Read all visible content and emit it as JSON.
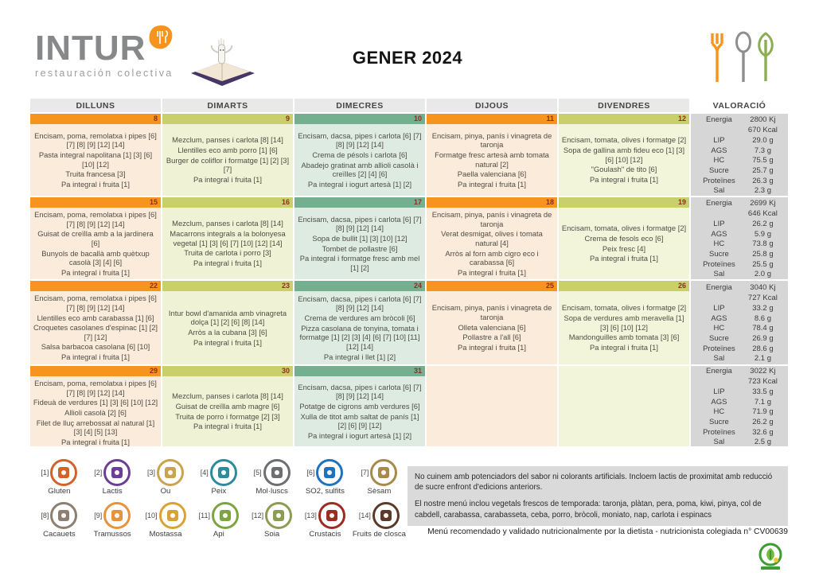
{
  "header": {
    "logo_text": "INTUR",
    "logo_subtext": "restauración colectiva",
    "title": "GENER 2024"
  },
  "columns": [
    "DILLUNS",
    "DIMARTS",
    "DIMECRES",
    "DIJOUS",
    "DIVENDRES",
    "VALORACIÓ"
  ],
  "column_colors": [
    {
      "strip": "#F7941D",
      "body": "#FBEBDA"
    },
    {
      "strip": "#C9CF6B",
      "body": "#EFF2D4"
    },
    {
      "strip": "#74AF90",
      "body": "#DEEBE3"
    },
    {
      "strip": "#F7941D",
      "body": "#FBEBDA"
    },
    {
      "strip": "#C9CF6B",
      "body": "#F3F5DB"
    }
  ],
  "nutrition_panel_color": "#D6D6D6",
  "weeks": [
    {
      "days": [
        {
          "num": "8",
          "items": [
            "Encisam, poma, remolatxa i pipes [6] [7] [8] [9] [12] [14]",
            "Pasta integral napolitana [1] [3] [6] [10] [12]",
            "Truita francesa [3]",
            "Pa integral i fruita [1]"
          ]
        },
        {
          "num": "9",
          "items": [
            "Mezclum, panses i carlota [8] [14]",
            "Llentilles eco amb porro [1] [6]",
            "Burger de coliflor i formatge [1] [2] [3] [7]",
            "Pa integral i fruita [1]"
          ]
        },
        {
          "num": "10",
          "items": [
            "Encisam, dacsa, pipes i carlota [6] [7] [8] [9] [12] [14]",
            "Crema de pésols i carlota [6]",
            "Abadejo gratinat amb allioli casolà i creïlles [2] [4] [6]",
            "Pa integral i iogurt artesà [1] [2]"
          ]
        },
        {
          "num": "11",
          "items": [
            "Encisam, pinya, panís i vinagreta de taronja",
            "Formatge fresc artesà amb tomata natural [2]",
            "Paella valenciana [6]",
            "Pa integral i fruita [1]"
          ]
        },
        {
          "num": "12",
          "items": [
            "Encisam, tomata, olives i formatge [2]",
            "Sopa de gallina amb fideu eco [1] [3] [6] [10] [12]",
            "\"Goulash\" de tito [6]",
            "Pa integral i fruita [1]"
          ]
        }
      ],
      "nutrition": [
        [
          "Energia",
          "2800 Kj"
        ],
        [
          "",
          "670 Kcal"
        ],
        [
          "LIP",
          "29.0 g"
        ],
        [
          "AGS",
          "7.3 g"
        ],
        [
          "HC",
          "75.5 g"
        ],
        [
          "Sucre",
          "25.7 g"
        ],
        [
          "Proteïnes",
          "26.3 g"
        ],
        [
          "Sal",
          "2.3 g"
        ]
      ]
    },
    {
      "days": [
        {
          "num": "15",
          "items": [
            "Encisam, poma, remolatxa i pipes [6] [7] [8] [9] [12] [14]",
            "Guisat de creïlla amb a la jardinera [6]",
            "Bunyols de bacallà amb quètxup casolà [3] [4] [6]",
            "Pa integral i fruita [1]"
          ]
        },
        {
          "num": "16",
          "items": [
            "Mezclum, panses i carlota [8] [14]",
            "Macarrons integrals a la bolonyesa vegetal [1] [3] [6] [7] [10] [12] [14]",
            "Truita de carlota i porro [3]",
            "Pa integral i fruita [1]"
          ]
        },
        {
          "num": "17",
          "items": [
            "Encisam, dacsa, pipes i carlota [6] [7] [8] [9] [12] [14]",
            "Sopa de bullit [1] [3] [10] [12]",
            "Tombet de pollastre [6]",
            "Pa integral i formatge fresc amb mel [1] [2]"
          ]
        },
        {
          "num": "18",
          "items": [
            "Encisam, pinya, panís i vinagreta de taronja",
            "Verat desmigat, olives i tomata natural [4]",
            "Arròs al forn amb cigro eco i carabassa [6]",
            "Pa integral i fruita [1]"
          ]
        },
        {
          "num": "19",
          "items": [
            "Encisam, tomata, olives i formatge [2]",
            "Crema de fesols eco [6]",
            "Peix fresc [4]",
            "Pa integral i fruita [1]"
          ]
        }
      ],
      "nutrition": [
        [
          "Energia",
          "2699 Kj"
        ],
        [
          "",
          "646 Kcal"
        ],
        [
          "LIP",
          "26.2 g"
        ],
        [
          "AGS",
          "5.9 g"
        ],
        [
          "HC",
          "73.8 g"
        ],
        [
          "Sucre",
          "25.8 g"
        ],
        [
          "Proteïnes",
          "25.5 g"
        ],
        [
          "Sal",
          "2.0 g"
        ]
      ]
    },
    {
      "days": [
        {
          "num": "22",
          "items": [
            "Encisam, poma, remolatxa i pipes [6] [7] [8] [9] [12] [14]",
            "Llentilles eco amb carabassa [1] [6]",
            "Croquetes casolanes d'espinac [1] [2] [7] [12]",
            "Salsa barbacoa casolana [6] [10]",
            "Pa integral i fruita [1]"
          ]
        },
        {
          "num": "23",
          "items": [
            "Intur bowl d'amanida amb vinagreta dolça [1] [2] [6] [8] [14]",
            "Arròs a la cubana [3] [6]",
            "Pa integral i fruita [1]"
          ]
        },
        {
          "num": "24",
          "items": [
            "Encisam, dacsa, pipes i carlota [6] [7] [8] [9] [12] [14]",
            "Crema de verdures am bròcoli [6]",
            "Pizza casolana de tonyina, tomata i formatge [1] [2] [3] [4] [6] [7] [10] [11] [12] [14]",
            "Pa integral i llet [1] [2]"
          ]
        },
        {
          "num": "25",
          "items": [
            "Encisam, pinya, panís i vinagreta de taronja",
            "Olleta valenciana [6]",
            "Pollastre a l'all [6]",
            "Pa integral i fruita [1]"
          ]
        },
        {
          "num": "26",
          "items": [
            "Encisam, tomata, olives i formatge [2]",
            "Sopa de verdures amb meravella [1] [3] [6] [10] [12]",
            "Mandonguilles amb tomata [3] [6]",
            "Pa integral i fruita [1]"
          ]
        }
      ],
      "nutrition": [
        [
          "Energia",
          "3040 Kj"
        ],
        [
          "",
          "727 Kcal"
        ],
        [
          "LIP",
          "33.2 g"
        ],
        [
          "AGS",
          "8.6 g"
        ],
        [
          "HC",
          "78.4 g"
        ],
        [
          "Sucre",
          "26.9 g"
        ],
        [
          "Proteïnes",
          "28.6 g"
        ],
        [
          "Sal",
          "2.1 g"
        ]
      ]
    },
    {
      "days": [
        {
          "num": "29",
          "items": [
            "Encisam, poma, remolatxa i pipes [6] [7] [8] [9] [12] [14]",
            "Fideuà de verdures [1] [3] [6] [10] [12]",
            "Allioli casolà [2] [6]",
            "Filet de lluç arrebossat al natural [1] [3] [4] [5] [13]",
            "Pa integral i fruita [1]"
          ]
        },
        {
          "num": "30",
          "items": [
            "Mezclum, panses i carlota [8] [14]",
            "Guisat de creïlla amb magre [6]",
            "Truita de porro i formatge [2] [3]",
            "Pa integral i fruita [1]"
          ]
        },
        {
          "num": "31",
          "items": [
            "Encisam, dacsa, pipes i carlota [6] [7] [8] [9] [12] [14]",
            "Potatge de cigrons amb verdures [6]",
            "Xulla de titot amb saltat de panís [1] [2] [6] [9] [12]",
            "Pa integral i iogurt artesà [1] [2]"
          ]
        },
        null,
        null
      ],
      "nutrition": [
        [
          "Energia",
          "3022 Kj"
        ],
        [
          "",
          "723 Kcal"
        ],
        [
          "LIP",
          "33.5 g"
        ],
        [
          "AGS",
          "7.1 g"
        ],
        [
          "HC",
          "71.9 g"
        ],
        [
          "Sucre",
          "26.2 g"
        ],
        [
          "Proteïnes",
          "32.6 g"
        ],
        [
          "Sal",
          "2.5 g"
        ]
      ]
    }
  ],
  "allergens": [
    {
      "num": "[1]",
      "label": "Gluten",
      "color": "#D2622A"
    },
    {
      "num": "[2]",
      "label": "Lactis",
      "color": "#6B3F94"
    },
    {
      "num": "[3]",
      "label": "Ou",
      "color": "#C9A34E"
    },
    {
      "num": "[4]",
      "label": "Peix",
      "color": "#2C8C9E"
    },
    {
      "num": "[5]",
      "label": "Mol·luscs",
      "color": "#6D6E71"
    },
    {
      "num": "[6]",
      "label": "SO2, sulfits",
      "color": "#1F72BE"
    },
    {
      "num": "[7]",
      "label": "Sèsam",
      "color": "#A8894B"
    },
    {
      "num": "[8]",
      "label": "Cacauets",
      "color": "#8D8071"
    },
    {
      "num": "[9]",
      "label": "Tramussos",
      "color": "#E8923B"
    },
    {
      "num": "[10]",
      "label": "Mostassa",
      "color": "#D8A335"
    },
    {
      "num": "[11]",
      "label": "Api",
      "color": "#7CA43F"
    },
    {
      "num": "[12]",
      "label": "Soia",
      "color": "#8C9C52"
    },
    {
      "num": "[13]",
      "label": "Crustacis",
      "color": "#9C2B22"
    },
    {
      "num": "[14]",
      "label": "Fruits de closca",
      "color": "#5A3A28"
    }
  ],
  "notes": {
    "note1": "No cuinem amb potenciadors del sabor ni colorants artificials. Incloem lactis de proximitat amb reducció de sucre enfront d'edicions anteriors.",
    "note2": "El nostre menú inclou vegetals frescos de temporada: taronja, plàtan, pera, poma, kiwi, pinya, col de cabdell, carabassa, carabasseta, ceba, porro, bròcoli, moniato, nap, carlota i espinacs"
  },
  "footer": {
    "dietitian_note": "Menú recomendado y validado nutricionalmente por la dietista - nutricionista colegiada n° CV00639"
  }
}
